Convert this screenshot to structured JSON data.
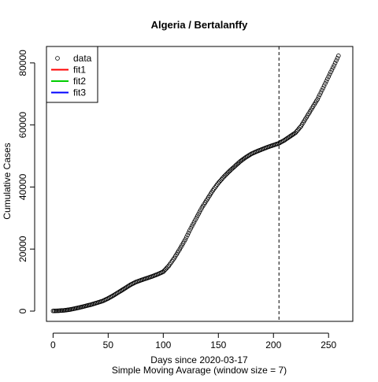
{
  "chart_data": {
    "type": "scatter",
    "title": "Algeria / Bertalanffy",
    "xlabel": "Days since 2020-03-17",
    "subtitle": "Simple Moving Avarage (window size = 7)",
    "ylabel": "Cumulative Cases",
    "xlim": [
      -6,
      272
    ],
    "ylim": [
      -3300,
      85300
    ],
    "xticks": [
      0,
      50,
      100,
      150,
      200,
      250
    ],
    "yticks": [
      0,
      20000,
      40000,
      60000,
      80000
    ],
    "grid": false,
    "legend_position": "top-left",
    "legend": [
      {
        "label": "data",
        "kind": "point",
        "color": "#000000"
      },
      {
        "label": "fit1",
        "kind": "line",
        "color": "#ff0000"
      },
      {
        "label": "fit2",
        "kind": "line",
        "color": "#00cd00"
      },
      {
        "label": "fit3",
        "kind": "line",
        "color": "#0000ff"
      }
    ],
    "vline": {
      "x": 205,
      "style": "dashed",
      "color": "#000000"
    },
    "series": [
      {
        "name": "data",
        "anchors": {
          "x": [
            0,
            5,
            10,
            15,
            20,
            25,
            30,
            35,
            40,
            45,
            50,
            55,
            60,
            65,
            70,
            75,
            80,
            85,
            90,
            95,
            100,
            105,
            110,
            115,
            120,
            125,
            130,
            135,
            140,
            145,
            150,
            155,
            160,
            165,
            170,
            175,
            180,
            185,
            190,
            195,
            200,
            205,
            210,
            215,
            220,
            225,
            230,
            235,
            240,
            245,
            250,
            255,
            259
          ],
          "y": [
            60,
            120,
            250,
            480,
            850,
            1250,
            1700,
            2150,
            2700,
            3250,
            4100,
            5100,
            6200,
            7300,
            8450,
            9350,
            10000,
            10600,
            11200,
            11900,
            12700,
            14600,
            17100,
            20000,
            23100,
            26700,
            30000,
            33300,
            36100,
            38900,
            41300,
            43300,
            45100,
            46700,
            48300,
            49600,
            50700,
            51500,
            52200,
            52900,
            53500,
            54100,
            55100,
            56300,
            57500,
            59600,
            62500,
            65400,
            68300,
            71900,
            75600,
            79200,
            82300
          ]
        }
      }
    ]
  }
}
